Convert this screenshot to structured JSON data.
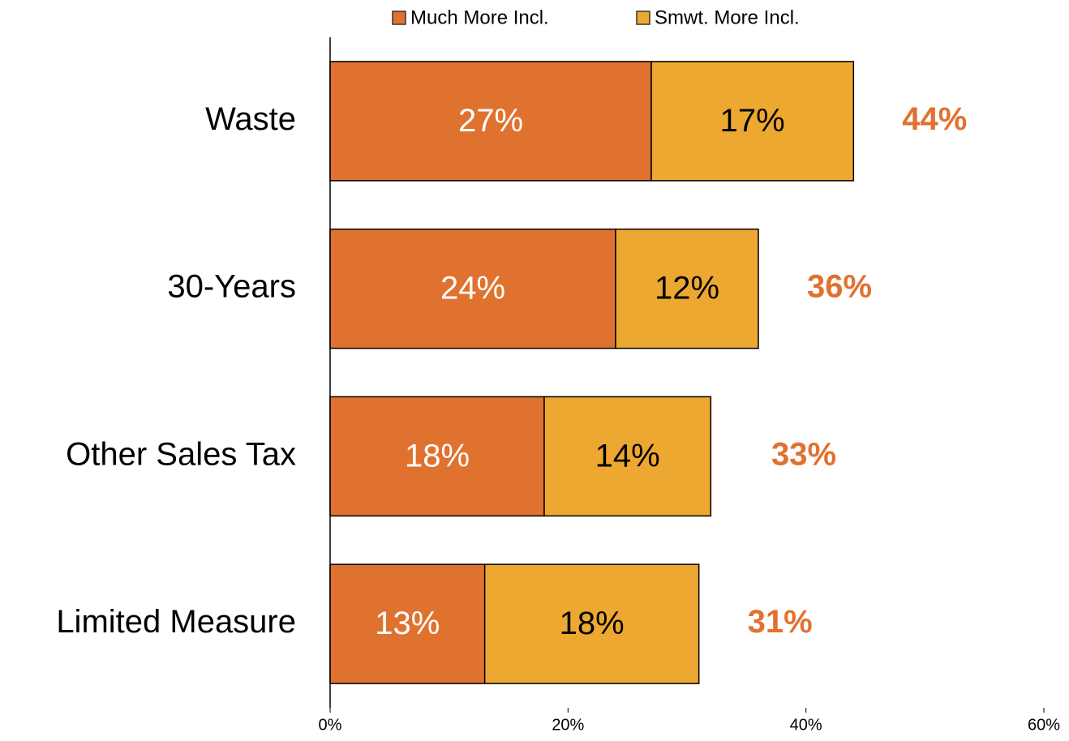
{
  "chart_data": {
    "type": "stacked-bar-horizontal",
    "categories": [
      "Waste",
      "30-Years",
      "Other Sales Tax",
      "Limited Measure"
    ],
    "series": [
      {
        "name": "Much More Incl.",
        "color": "#e07230",
        "label_color": "#ffffff",
        "values": [
          27,
          24,
          18,
          13
        ],
        "value_labels": [
          "27%",
          "24%",
          "18%",
          "13%"
        ]
      },
      {
        "name": "Smwt. More Incl.",
        "color": "#eda831",
        "label_color": "#000000",
        "values": [
          17,
          12,
          14,
          18
        ],
        "value_labels": [
          "17%",
          "12%",
          "14%",
          "18%"
        ]
      }
    ],
    "totals": [
      44,
      36,
      33,
      31
    ],
    "total_labels": [
      "44%",
      "36%",
      "33%",
      "31%"
    ],
    "total_color": "#e07230",
    "xlim": [
      0,
      60
    ],
    "xticks": [
      {
        "value": 0,
        "label": "0%"
      },
      {
        "value": 20,
        "label": "20%"
      },
      {
        "value": 40,
        "label": "40%"
      },
      {
        "value": 60,
        "label": "60%"
      }
    ],
    "legend": "top"
  }
}
